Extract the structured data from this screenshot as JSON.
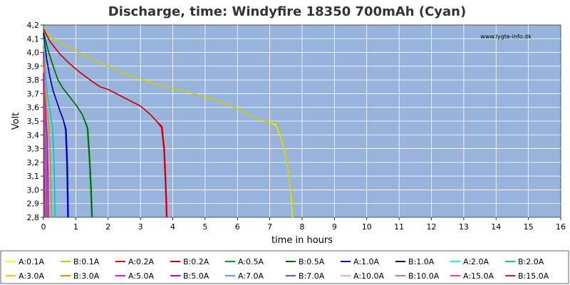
{
  "chart_data": {
    "type": "line",
    "title": "Discharge, time: Windyfire 18350 700mAh (Cyan)",
    "xlabel": "time in hours",
    "ylabel": "Volt",
    "watermark": "www.lygte-info.dk",
    "xlim": [
      0,
      16
    ],
    "ylim": [
      2.8,
      4.2
    ],
    "x_ticks": [
      "0",
      "1",
      "2",
      "3",
      "4",
      "5",
      "6",
      "7",
      "8",
      "9",
      "10",
      "11",
      "12",
      "13",
      "14",
      "15",
      "16"
    ],
    "y_ticks": [
      "2,8",
      "2,9",
      "3,0",
      "3,1",
      "3,2",
      "3,3",
      "3,4",
      "3,5",
      "3,6",
      "3,7",
      "3,8",
      "3,9",
      "4,0",
      "4,1",
      "4,2"
    ],
    "grid": true,
    "legend_position": "bottom",
    "colors": {
      "plot_background": "#98b4dd",
      "grid": "#ffffff"
    },
    "series": [
      {
        "name": "A:0.1A",
        "color": "#ffff00",
        "x": [
          0,
          0.3,
          0.6,
          1,
          1.5,
          2,
          2.5,
          3,
          3.3,
          4,
          4.5,
          5,
          5.5,
          6,
          6.5,
          6.9,
          7.2,
          7.35,
          7.5,
          7.6,
          7.65,
          7.68,
          7.7
        ],
        "y": [
          4.17,
          4.1,
          4.06,
          4.01,
          3.95,
          3.9,
          3.85,
          3.81,
          3.78,
          3.74,
          3.71,
          3.68,
          3.64,
          3.59,
          3.53,
          3.5,
          3.47,
          3.38,
          3.25,
          3.1,
          3.0,
          2.9,
          2.8
        ]
      },
      {
        "name": "B:0.1A",
        "color": "#c8c800",
        "x": [
          0,
          0.3,
          0.6,
          1,
          1.5,
          2,
          2.5,
          3,
          3.3,
          4,
          4.5,
          5,
          5.5,
          6,
          6.5,
          6.9,
          7.2,
          7.35,
          7.5,
          7.6,
          7.66,
          7.7,
          7.72
        ],
        "y": [
          4.17,
          4.1,
          4.06,
          4.01,
          3.95,
          3.9,
          3.85,
          3.81,
          3.78,
          3.74,
          3.71,
          3.68,
          3.64,
          3.59,
          3.53,
          3.5,
          3.48,
          3.39,
          3.26,
          3.11,
          3.0,
          2.9,
          2.8
        ]
      },
      {
        "name": "A:0.2A",
        "color": "#ff0000",
        "x": [
          0,
          0.2,
          0.5,
          0.8,
          1.1,
          1.5,
          1.75,
          2,
          2.5,
          3,
          3.3,
          3.5,
          3.65,
          3.72,
          3.76,
          3.79,
          3.8
        ],
        "y": [
          4.17,
          4.08,
          3.99,
          3.92,
          3.86,
          3.79,
          3.75,
          3.73,
          3.67,
          3.61,
          3.55,
          3.5,
          3.45,
          3.3,
          3.1,
          2.9,
          2.8
        ]
      },
      {
        "name": "B:0.2A",
        "color": "#c80000",
        "x": [
          0,
          0.2,
          0.5,
          0.8,
          1.1,
          1.5,
          1.75,
          2,
          2.5,
          3,
          3.3,
          3.5,
          3.67,
          3.74,
          3.78,
          3.81,
          3.82
        ],
        "y": [
          4.17,
          4.08,
          3.99,
          3.92,
          3.86,
          3.79,
          3.75,
          3.73,
          3.67,
          3.61,
          3.55,
          3.5,
          3.46,
          3.3,
          3.1,
          2.9,
          2.8
        ]
      },
      {
        "name": "A:0.5A",
        "color": "#00a000",
        "x": [
          0,
          0.15,
          0.3,
          0.45,
          0.6,
          0.8,
          1.0,
          1.2,
          1.35,
          1.42,
          1.46,
          1.48,
          1.49
        ],
        "y": [
          4.15,
          4.01,
          3.9,
          3.8,
          3.74,
          3.68,
          3.62,
          3.55,
          3.45,
          3.2,
          3.0,
          2.85,
          2.8
        ]
      },
      {
        "name": "B:0.5A",
        "color": "#006400",
        "x": [
          0,
          0.15,
          0.3,
          0.45,
          0.6,
          0.8,
          1.0,
          1.2,
          1.37,
          1.44,
          1.48,
          1.5,
          1.51
        ],
        "y": [
          4.15,
          4.01,
          3.9,
          3.8,
          3.74,
          3.68,
          3.62,
          3.55,
          3.45,
          3.2,
          3.0,
          2.85,
          2.8
        ]
      },
      {
        "name": "A:1.0A",
        "color": "#0000ff",
        "x": [
          0,
          0.1,
          0.2,
          0.3,
          0.4,
          0.5,
          0.6,
          0.68,
          0.72,
          0.74,
          0.75
        ],
        "y": [
          4.14,
          3.95,
          3.82,
          3.72,
          3.65,
          3.58,
          3.52,
          3.44,
          3.2,
          2.95,
          2.8
        ]
      },
      {
        "name": "B:1.0A",
        "color": "#000096",
        "x": [
          0,
          0.1,
          0.2,
          0.3,
          0.4,
          0.5,
          0.6,
          0.7,
          0.74,
          0.76,
          0.77
        ],
        "y": [
          4.14,
          3.95,
          3.82,
          3.72,
          3.65,
          3.58,
          3.52,
          3.44,
          3.2,
          2.95,
          2.8
        ]
      },
      {
        "name": "A:2.0A",
        "color": "#00ffff",
        "x": [
          0,
          0.06,
          0.12,
          0.2,
          0.28,
          0.32,
          0.34,
          0.35
        ],
        "y": [
          4.1,
          3.85,
          3.7,
          3.58,
          3.45,
          3.2,
          2.95,
          2.8
        ]
      },
      {
        "name": "B:2.0A",
        "color": "#00c8c8",
        "x": [
          0,
          0.06,
          0.12,
          0.2,
          0.28,
          0.33,
          0.35,
          0.36
        ],
        "y": [
          4.1,
          3.85,
          3.7,
          3.58,
          3.45,
          3.2,
          2.95,
          2.8
        ]
      },
      {
        "name": "A:3.0A",
        "color": "#ffc800",
        "x": [
          0,
          0.05,
          0.1,
          0.16,
          0.2,
          0.22,
          0.23
        ],
        "y": [
          4.05,
          3.75,
          3.6,
          3.48,
          3.25,
          3.0,
          2.8
        ]
      },
      {
        "name": "B:3.0A",
        "color": "#c89600",
        "x": [
          0,
          0.05,
          0.1,
          0.16,
          0.21,
          0.23,
          0.24
        ],
        "y": [
          4.05,
          3.75,
          3.6,
          3.48,
          3.25,
          3.0,
          2.8
        ]
      },
      {
        "name": "A:5.0A",
        "color": "#ff00ff",
        "x": [
          0,
          0.03,
          0.07,
          0.11,
          0.13,
          0.14
        ],
        "y": [
          4.0,
          3.7,
          3.55,
          3.4,
          3.1,
          2.8
        ]
      },
      {
        "name": "B:5.0A",
        "color": "#c800c8",
        "x": [
          0,
          0.03,
          0.07,
          0.11,
          0.14,
          0.15
        ],
        "y": [
          4.0,
          3.7,
          3.55,
          3.4,
          3.1,
          2.8
        ]
      },
      {
        "name": "A:7.0A",
        "color": "#6496ff",
        "x": [
          0,
          0.02,
          0.05,
          0.08,
          0.1
        ],
        "y": [
          3.95,
          3.65,
          3.5,
          3.2,
          2.8
        ]
      },
      {
        "name": "B:7.0A",
        "color": "#4b64b4",
        "x": [
          0,
          0.02,
          0.05,
          0.08,
          0.1
        ],
        "y": [
          3.95,
          3.65,
          3.5,
          3.2,
          2.8
        ]
      },
      {
        "name": "A:10.0A",
        "color": "#ffaaaa",
        "x": [
          0,
          0.02,
          0.04,
          0.06
        ],
        "y": [
          3.9,
          3.6,
          3.3,
          2.8
        ]
      },
      {
        "name": "B:10.0A",
        "color": "#c87878",
        "x": [
          0,
          0.02,
          0.04,
          0.06
        ],
        "y": [
          3.9,
          3.6,
          3.3,
          2.8
        ]
      },
      {
        "name": "A:15.0A",
        "color": "#ff3c96",
        "x": [
          0,
          0.01,
          0.02,
          0.04
        ],
        "y": [
          3.85,
          3.55,
          3.2,
          2.8
        ]
      },
      {
        "name": "B:15.0A",
        "color": "#c8145a",
        "x": [
          0,
          0.01,
          0.02,
          0.04
        ],
        "y": [
          3.85,
          3.55,
          3.2,
          2.8
        ]
      }
    ]
  }
}
